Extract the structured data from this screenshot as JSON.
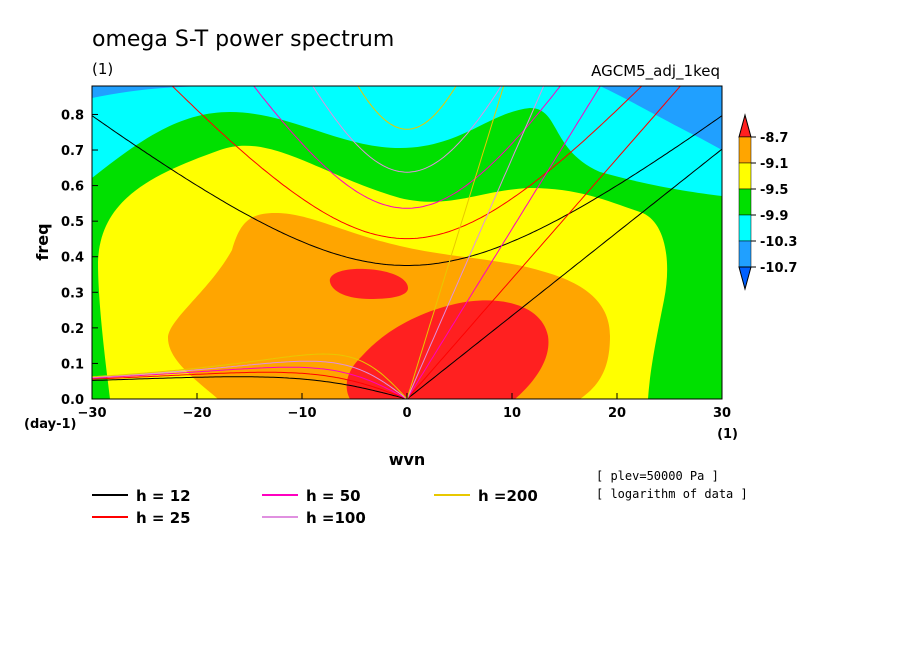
{
  "chart_data": {
    "type": "heatmap",
    "title": "omega S-T power spectrum",
    "subtitle": "(1)",
    "dataset_label": "AGCM5_adj_1keq",
    "xlabel": "wvn",
    "ylabel": "freq",
    "x_unit": "(1)",
    "y_unit": "(day-1)",
    "xlim": [
      -30,
      30
    ],
    "ylim": [
      0.0,
      0.88
    ],
    "xticks": [
      -30,
      -20,
      -10,
      0,
      10,
      20,
      30
    ],
    "yticks": [
      0.0,
      0.1,
      0.2,
      0.3,
      0.4,
      0.5,
      0.6,
      0.7,
      0.8
    ],
    "tick_labels_x": [
      "−30",
      "−20",
      "−10",
      "0",
      "10",
      "20",
      "30"
    ],
    "tick_labels_y": [
      "0.0",
      "0.1",
      "0.2",
      "0.3",
      "0.4",
      "0.5",
      "0.6",
      "0.7",
      "0.8"
    ],
    "colorbar": {
      "labels": [
        "-8.7",
        "-9.1",
        "-9.5",
        "-9.9",
        "-10.3",
        "-10.7"
      ],
      "colors": [
        "#ff2020",
        "#ffa500",
        "#ffff00",
        "#00e000",
        "#00ffff",
        "#20a0ff",
        "#0060ff"
      ]
    },
    "notes": [
      "[ plev=50000 Pa ]",
      "[ logarithm of data ]"
    ],
    "dispersion_curves": [
      {
        "name": "h = 12",
        "h": 12,
        "color": "#000000"
      },
      {
        "name": "h = 25",
        "h": 25,
        "color": "#ff0000"
      },
      {
        "name": "h = 50",
        "h": 50,
        "color": "#ff00c0"
      },
      {
        "name": "h =100",
        "h": 100,
        "color": "#e090e0"
      },
      {
        "name": "h =200",
        "h": 200,
        "color": "#e8c800"
      }
    ]
  }
}
